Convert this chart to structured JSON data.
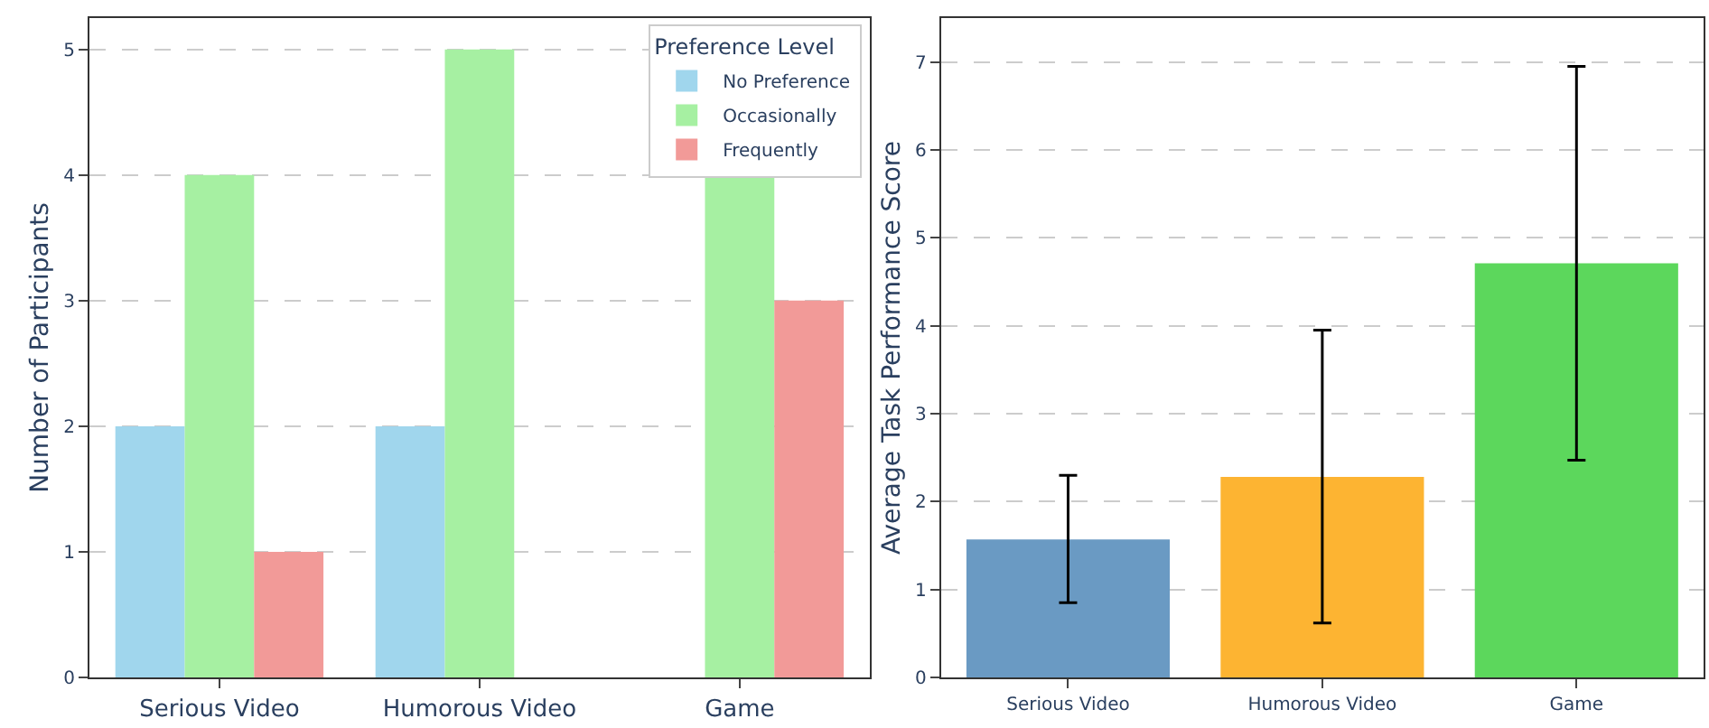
{
  "chart_data": [
    {
      "type": "bar",
      "categories": [
        "Serious Video",
        "Humorous Video",
        "Game"
      ],
      "ylabel": "Number of Participants",
      "legend_title": "Preference Level",
      "legend": "top right",
      "grid": "y",
      "ylim": [
        0,
        5.25
      ],
      "yticks": [
        0,
        1,
        2,
        3,
        4,
        5
      ],
      "series": [
        {
          "name": "No Preference",
          "color": "#a0d6ed",
          "values": [
            2,
            2,
            0
          ]
        },
        {
          "name": "Occasionally",
          "color": "#a6f0a2",
          "values": [
            4,
            5,
            4
          ]
        },
        {
          "name": "Frequently",
          "color": "#f29a98",
          "values": [
            1,
            0,
            3
          ]
        }
      ]
    },
    {
      "type": "bar",
      "categories": [
        "Serious Video",
        "Humorous Video",
        "Game"
      ],
      "ylabel": "Average Task Performance Score",
      "grid": "y",
      "ylim": [
        0,
        7.5
      ],
      "yticks": [
        0,
        1,
        2,
        3,
        4,
        5,
        6,
        7
      ],
      "values": [
        1.57,
        2.28,
        4.71
      ],
      "colors": [
        "#6a9ac3",
        "#fdb432",
        "#5cd75c"
      ],
      "errors": [
        [
          0.85,
          2.3
        ],
        [
          0.62,
          3.95
        ],
        [
          2.47,
          6.95
        ]
      ]
    }
  ]
}
